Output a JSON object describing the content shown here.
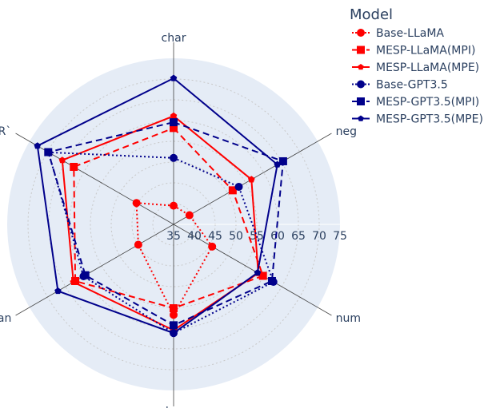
{
  "chart_data": {
    "type": "radar",
    "categories": [
      "char",
      "neg",
      "num",
      "loc",
      "stan",
      "R`"
    ],
    "radial_range": [
      35,
      75
    ],
    "radial_ticks": [
      "35",
      "40",
      "45",
      "50",
      "55",
      "60",
      "65",
      "70",
      "75"
    ],
    "grid": true,
    "legend_title": "Model",
    "legend_position": "top-right",
    "series": [
      {
        "name": "Base-LLaMA",
        "color": "#ff0000",
        "dash": "dot",
        "marker": "circle",
        "values": [
          39.5,
          39.4,
          45.7,
          56.8,
          44.8,
          45.3
        ]
      },
      {
        "name": "MESP-LLaMA(MPI)",
        "color": "#ff0000",
        "dash": "dash",
        "marker": "square",
        "values": [
          58.2,
          51.4,
          59.8,
          55.2,
          62.3,
          62.7
        ]
      },
      {
        "name": "MESP-LLaMA(MPE)",
        "color": "#ff0000",
        "dash": "solid",
        "marker": "pentagon",
        "values": [
          61.1,
          56.6,
          58.5,
          60.5,
          62.8,
          65.9
        ]
      },
      {
        "name": "Base-GPT3.5",
        "color": "#00008b",
        "dash": "dot",
        "marker": "circle",
        "values": [
          51.0,
          53.1,
          62.7,
          61.2,
          60.0,
          69.7
        ]
      },
      {
        "name": "MESP-GPT3.5(MPI)",
        "color": "#00008b",
        "dash": "dash",
        "marker": "square",
        "values": [
          59.6,
          65.4,
          62.3,
          59.3,
          59.5,
          69.8
        ]
      },
      {
        "name": "MESP-GPT3.5(MPE)",
        "color": "#00008b",
        "dash": "solid",
        "marker": "pentagon",
        "values": [
          70.2,
          63.8,
          58.3,
          61.2,
          67.1,
          72.8
        ]
      }
    ]
  }
}
